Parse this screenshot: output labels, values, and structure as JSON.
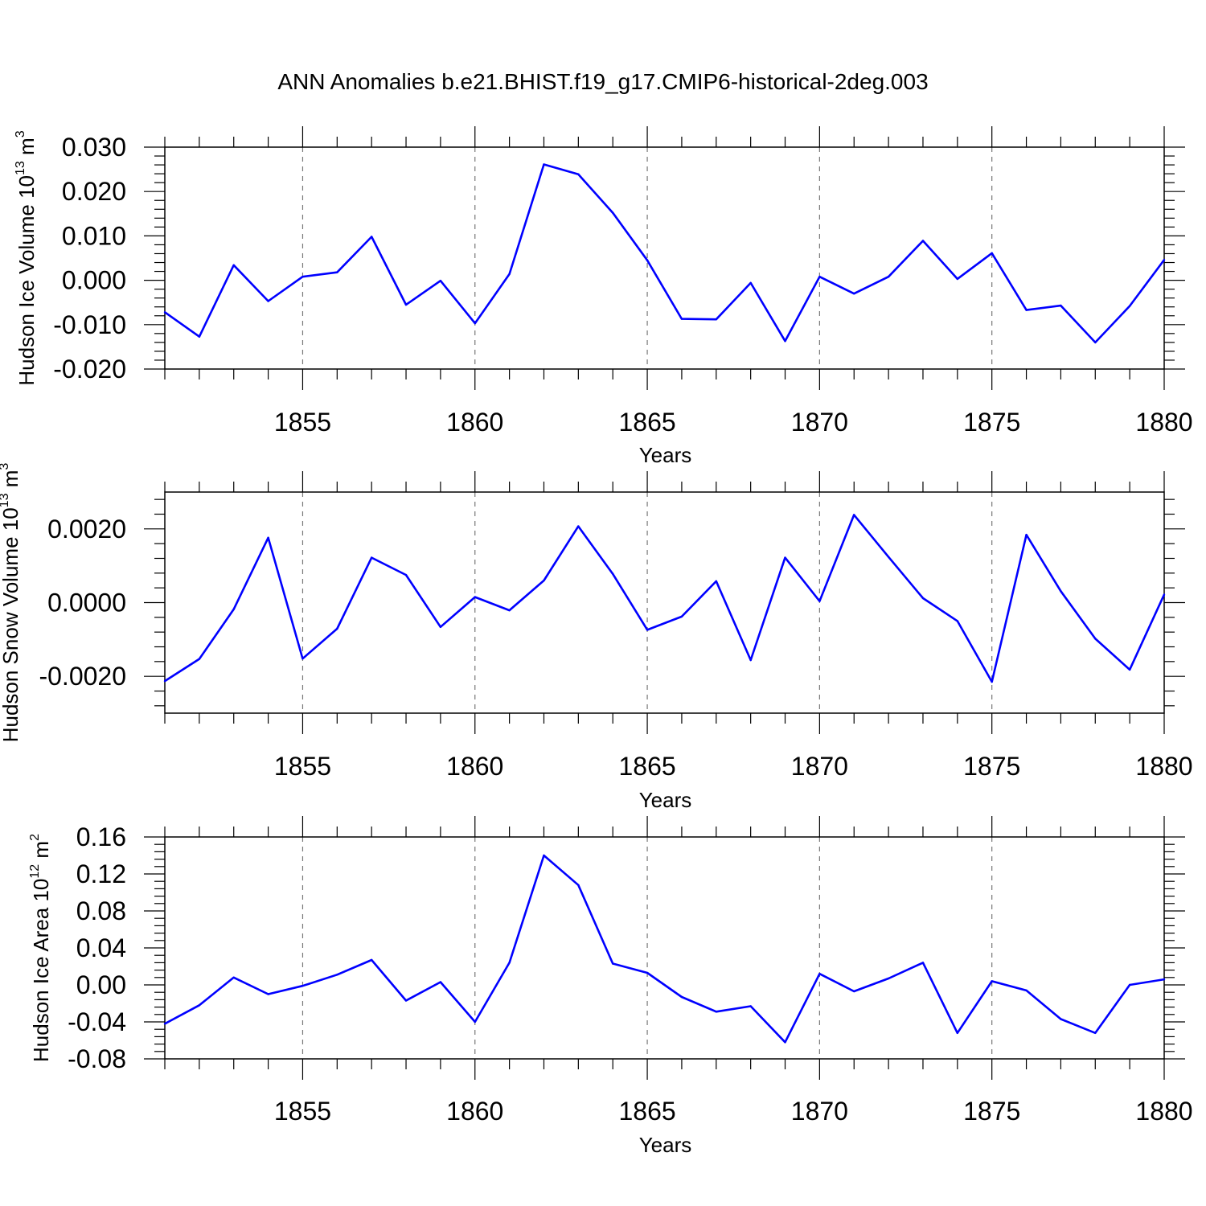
{
  "title": "ANN Anomalies b.e21.BHIST.f19_g17.CMIP6-historical-2deg.003",
  "chart_data": [
    {
      "type": "line",
      "title": "ANN Anomalies b.e21.BHIST.f19_g17.CMIP6-historical-2deg.003",
      "xlabel": "Years",
      "ylabel": "Hudson Ice Volume 10",
      "ylabel_exp": "13",
      "ylabel_unit": " m",
      "ylabel_unit_exp": "3",
      "xlim": [
        1851,
        1880
      ],
      "ylim": [
        -0.02,
        0.03
      ],
      "yticks": [
        -0.02,
        -0.01,
        0.0,
        0.01,
        0.02,
        0.03
      ],
      "ytick_labels": [
        "-0.020",
        "-0.010",
        "0.000",
        "0.010",
        "0.020",
        "0.030"
      ],
      "xticks": [
        1855,
        1860,
        1865,
        1870,
        1875,
        1880
      ],
      "xtick_labels": [
        "1855",
        "1860",
        "1865",
        "1870",
        "1875",
        "1880"
      ],
      "grid": "dashed vertical lines at labeled years",
      "color": "#0000ff",
      "x": [
        1851,
        1852,
        1853,
        1854,
        1855,
        1856,
        1857,
        1858,
        1859,
        1860,
        1861,
        1862,
        1863,
        1864,
        1865,
        1866,
        1867,
        1868,
        1869,
        1870,
        1871,
        1872,
        1873,
        1874,
        1875,
        1876,
        1877,
        1878,
        1879,
        1880
      ],
      "values": [
        -0.0072,
        -0.0127,
        0.0034,
        -0.0047,
        0.0008,
        0.0018,
        0.0098,
        -0.0055,
        -0.0001,
        -0.0097,
        0.0014,
        0.0261,
        0.0239,
        0.0152,
        0.0045,
        -0.0087,
        -0.0088,
        -0.0006,
        -0.0137,
        0.0008,
        -0.003,
        0.0008,
        0.0089,
        0.0003,
        0.0061,
        -0.0067,
        -0.0057,
        -0.014,
        -0.0058,
        0.0046
      ]
    },
    {
      "type": "line",
      "xlabel": "Years",
      "ylabel": "Hudson Snow Volume 10",
      "ylabel_exp": "13",
      "ylabel_unit": " m",
      "ylabel_unit_exp": "3",
      "xlim": [
        1851,
        1880
      ],
      "ylim": [
        -0.003,
        0.003
      ],
      "yticks": [
        -0.002,
        0.0,
        0.002
      ],
      "ytick_labels": [
        "-0.0020",
        "0.0000",
        "0.0020"
      ],
      "xticks": [
        1855,
        1860,
        1865,
        1870,
        1875,
        1880
      ],
      "xtick_labels": [
        "1855",
        "1860",
        "1865",
        "1870",
        "1875",
        "1880"
      ],
      "grid": "dashed vertical lines at labeled years",
      "color": "#0000ff",
      "x": [
        1851,
        1852,
        1853,
        1854,
        1855,
        1856,
        1857,
        1858,
        1859,
        1860,
        1861,
        1862,
        1863,
        1864,
        1865,
        1866,
        1867,
        1868,
        1869,
        1870,
        1871,
        1872,
        1873,
        1874,
        1875,
        1876,
        1877,
        1878,
        1879,
        1880
      ],
      "values": [
        -0.00213,
        -0.00153,
        -0.00018,
        0.00176,
        -0.00152,
        -0.00071,
        0.00122,
        0.00075,
        -0.00066,
        0.00015,
        -0.00021,
        0.0006,
        0.00207,
        0.00078,
        -0.00074,
        -0.00038,
        0.00058,
        -0.00156,
        0.00122,
        4e-05,
        0.00238,
        0.00124,
        0.00012,
        -0.0005,
        -0.00215,
        0.00184,
        0.00031,
        -0.00098,
        -0.00182,
        0.00022
      ]
    },
    {
      "type": "line",
      "xlabel": "Years",
      "ylabel": "Hudson Ice Area 10",
      "ylabel_exp": "12",
      "ylabel_unit": " m",
      "ylabel_unit_exp": "2",
      "xlim": [
        1851,
        1880
      ],
      "ylim": [
        -0.08,
        0.16
      ],
      "yticks": [
        -0.08,
        -0.04,
        0.0,
        0.04,
        0.08,
        0.12,
        0.16
      ],
      "ytick_labels": [
        "-0.08",
        "-0.04",
        "0.00",
        "0.04",
        "0.08",
        "0.12",
        "0.16"
      ],
      "xticks": [
        1855,
        1860,
        1865,
        1870,
        1875,
        1880
      ],
      "xtick_labels": [
        "1855",
        "1860",
        "1865",
        "1870",
        "1875",
        "1880"
      ],
      "grid": "dashed vertical lines at labeled years",
      "color": "#0000ff",
      "x": [
        1851,
        1852,
        1853,
        1854,
        1855,
        1856,
        1857,
        1858,
        1859,
        1860,
        1861,
        1862,
        1863,
        1864,
        1865,
        1866,
        1867,
        1868,
        1869,
        1870,
        1871,
        1872,
        1873,
        1874,
        1875,
        1876,
        1877,
        1878,
        1879,
        1880
      ],
      "values": [
        -0.042,
        -0.022,
        0.008,
        -0.01,
        -0.001,
        0.011,
        0.027,
        -0.017,
        0.003,
        -0.04,
        0.024,
        0.14,
        0.108,
        0.023,
        0.013,
        -0.013,
        -0.029,
        -0.023,
        -0.062,
        0.012,
        -0.007,
        0.007,
        0.024,
        -0.052,
        0.004,
        -0.006,
        -0.037,
        -0.052,
        0.0,
        0.006
      ]
    }
  ]
}
